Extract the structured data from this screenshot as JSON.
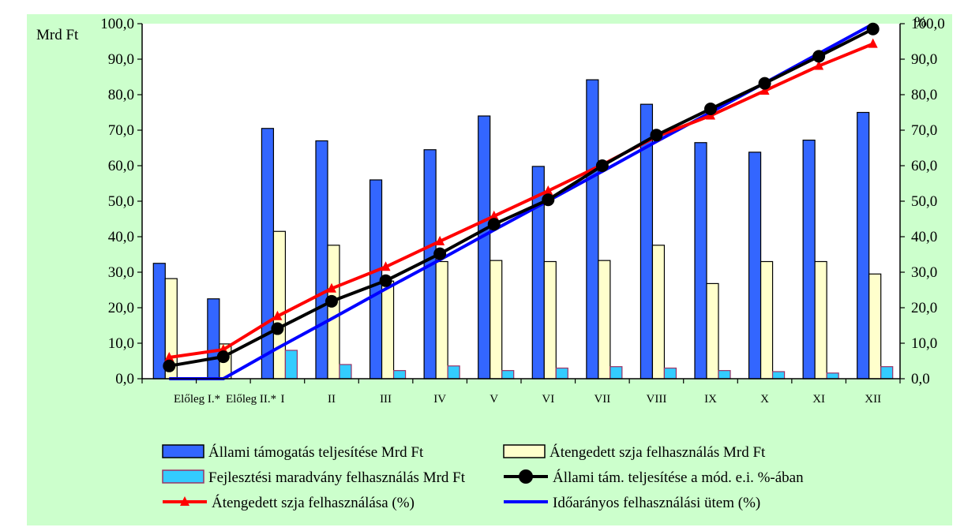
{
  "chart_data": {
    "type": "bar",
    "categories": [
      "Előleg I.*",
      "Előleg II.*",
      "I",
      "II",
      "III",
      "IV",
      "V",
      "VI",
      "VII",
      "VIII",
      "IX",
      "X",
      "XI",
      "XII"
    ],
    "series": [
      {
        "name": "Állami támogatás teljesítése Mrd Ft",
        "kind": "bar",
        "axis": "left",
        "color": "#3366ff",
        "values": [
          32.5,
          22.5,
          70.5,
          67.0,
          56.0,
          64.5,
          74.0,
          59.8,
          84.2,
          77.3,
          66.5,
          63.8,
          67.2,
          75.0
        ]
      },
      {
        "name": "Átengedett szja felhasználás Mrd Ft",
        "kind": "bar",
        "axis": "left",
        "color": "#ffffcc",
        "values": [
          28.2,
          9.8,
          41.5,
          37.6,
          27.5,
          33.0,
          33.3,
          33.0,
          33.3,
          37.6,
          26.8,
          33.0,
          33.0,
          29.5
        ]
      },
      {
        "name": "Fejlesztési maradvány felhasználás Mrd Ft",
        "kind": "bar",
        "axis": "left",
        "color": "#33ccff",
        "values": [
          0,
          0,
          8.0,
          4.0,
          2.3,
          3.6,
          2.3,
          3.0,
          3.4,
          3.0,
          2.3,
          2.0,
          1.6,
          3.4
        ]
      },
      {
        "name": "Állami tám. teljesítése a mód. e.i. %-ában",
        "kind": "line",
        "axis": "right",
        "color": "#000000",
        "marker": "circle",
        "values": [
          3.6,
          6.2,
          14.1,
          21.8,
          27.6,
          35.2,
          43.5,
          50.4,
          60.0,
          68.6,
          76.0,
          83.2,
          90.8,
          98.5
        ]
      },
      {
        "name": "Átengedett szja felhasználása (%)",
        "kind": "line",
        "axis": "right",
        "color": "#ff0000",
        "marker": "triangle",
        "values": [
          6.0,
          8.2,
          17.6,
          25.4,
          31.5,
          38.7,
          45.8,
          52.9,
          60.3,
          68.2,
          74.1,
          81.1,
          88.1,
          94.3
        ]
      },
      {
        "name": "Időarányos felhasználási ütem (%)",
        "kind": "line",
        "axis": "right",
        "color": "#0000ff",
        "marker": "none",
        "values": [
          0,
          0,
          8.6,
          16.9,
          25.3,
          33.5,
          41.9,
          50.1,
          58.4,
          66.8,
          75.0,
          83.3,
          91.6,
          99.9
        ]
      }
    ],
    "ylabel": "Mrd Ft",
    "y2label": "%",
    "ylim": [
      0,
      100
    ],
    "y2lim": [
      0,
      100
    ],
    "y_ticks": [
      "0,0",
      "10,0",
      "20,0",
      "30,0",
      "40,0",
      "50,0",
      "60,0",
      "70,0",
      "80,0",
      "90,0",
      "100,0"
    ],
    "grid": false,
    "legend_position": "bottom"
  },
  "colors": {
    "panel_background": "#ccffcc",
    "plot_background": "#ffffff",
    "axis": "#000000",
    "bar_outline": "#000000",
    "fejl_outline": "#993366"
  }
}
